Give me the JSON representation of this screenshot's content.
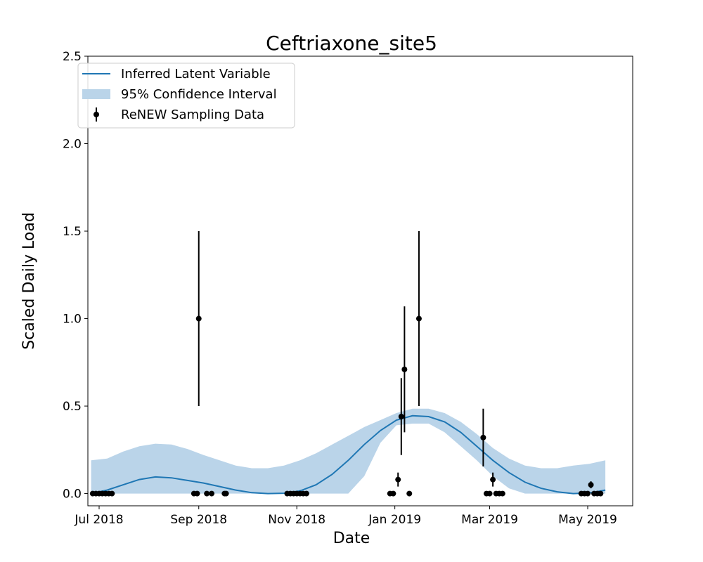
{
  "chart_data": {
    "type": "line",
    "title": "Ceftriaxone_site5",
    "xlabel": "Date",
    "ylabel": "Scaled Daily Load",
    "x_domain": [
      "2018-06-24",
      "2019-05-29"
    ],
    "ylim": [
      -0.07,
      2.5
    ],
    "yticks": [
      0.0,
      0.5,
      1.0,
      1.5,
      2.0,
      2.5
    ],
    "ytick_labels": [
      "0.0",
      "0.5",
      "1.0",
      "1.5",
      "2.0",
      "2.5"
    ],
    "xticks": [
      "2018-07-01",
      "2018-09-01",
      "2018-11-01",
      "2019-01-01",
      "2019-03-01",
      "2019-05-01"
    ],
    "xtick_labels": [
      "Jul 2018",
      "Sep 2018",
      "Nov 2018",
      "Jan 2019",
      "Mar 2019",
      "May 2019"
    ],
    "legend": {
      "position": "top-left",
      "entries": [
        {
          "label": "Inferred Latent Variable",
          "kind": "line",
          "color": "#1f77b4"
        },
        {
          "label": "95% Confidence Interval",
          "kind": "band",
          "color": "#bad4e9"
        },
        {
          "label": "ReNEW Sampling Data",
          "kind": "errorbar",
          "color": "#000000"
        }
      ]
    },
    "colors": {
      "line": "#1f77b4",
      "band": "#bad4e9",
      "points": "#000000"
    },
    "latent": {
      "x": [
        "2018-06-26",
        "2018-07-06",
        "2018-07-16",
        "2018-07-26",
        "2018-08-05",
        "2018-08-15",
        "2018-08-25",
        "2018-09-04",
        "2018-09-14",
        "2018-09-24",
        "2018-10-04",
        "2018-10-14",
        "2018-10-24",
        "2018-11-03",
        "2018-11-13",
        "2018-11-23",
        "2018-12-03",
        "2018-12-13",
        "2018-12-23",
        "2019-01-02",
        "2019-01-12",
        "2019-01-22",
        "2019-02-01",
        "2019-02-11",
        "2019-02-21",
        "2019-03-03",
        "2019-03-13",
        "2019-03-23",
        "2019-04-02",
        "2019-04-12",
        "2019-04-22",
        "2019-05-02",
        "2019-05-12"
      ],
      "mean": [
        0.0,
        0.02,
        0.05,
        0.08,
        0.095,
        0.09,
        0.075,
        0.06,
        0.04,
        0.02,
        0.005,
        0.0,
        0.002,
        0.015,
        0.05,
        0.11,
        0.19,
        0.28,
        0.36,
        0.42,
        0.445,
        0.44,
        0.41,
        0.35,
        0.27,
        0.19,
        0.12,
        0.065,
        0.03,
        0.01,
        0.0,
        0.003,
        0.02
      ],
      "lower": [
        0.0,
        0.0,
        0.0,
        0.0,
        0.0,
        0.0,
        0.0,
        0.0,
        0.0,
        0.0,
        0.0,
        0.0,
        0.0,
        0.0,
        0.0,
        0.0,
        0.0,
        0.1,
        0.29,
        0.39,
        0.4,
        0.4,
        0.35,
        0.27,
        0.19,
        0.1,
        0.03,
        0.0,
        0.0,
        0.0,
        0.0,
        0.0,
        0.0
      ],
      "upper": [
        0.19,
        0.2,
        0.24,
        0.27,
        0.285,
        0.28,
        0.255,
        0.22,
        0.19,
        0.16,
        0.145,
        0.145,
        0.16,
        0.19,
        0.23,
        0.28,
        0.33,
        0.38,
        0.42,
        0.46,
        0.485,
        0.485,
        0.46,
        0.41,
        0.34,
        0.26,
        0.2,
        0.16,
        0.145,
        0.145,
        0.16,
        0.17,
        0.19
      ]
    },
    "samples": [
      {
        "date": "2018-06-27",
        "y": 0.0
      },
      {
        "date": "2018-06-29",
        "y": 0.0
      },
      {
        "date": "2018-07-01",
        "y": 0.0
      },
      {
        "date": "2018-07-03",
        "y": 0.0
      },
      {
        "date": "2018-07-05",
        "y": 0.0
      },
      {
        "date": "2018-07-07",
        "y": 0.0
      },
      {
        "date": "2018-07-09",
        "y": 0.0
      },
      {
        "date": "2018-08-29",
        "y": 0.0
      },
      {
        "date": "2018-08-31",
        "y": 0.0
      },
      {
        "date": "2018-09-01",
        "y": 1.0,
        "err": 0.5
      },
      {
        "date": "2018-09-06",
        "y": 0.0
      },
      {
        "date": "2018-09-09",
        "y": 0.0
      },
      {
        "date": "2018-09-17",
        "y": 0.0
      },
      {
        "date": "2018-09-18",
        "y": 0.0
      },
      {
        "date": "2018-10-26",
        "y": 0.0
      },
      {
        "date": "2018-10-28",
        "y": 0.0
      },
      {
        "date": "2018-10-30",
        "y": 0.0
      },
      {
        "date": "2018-11-01",
        "y": 0.0
      },
      {
        "date": "2018-11-03",
        "y": 0.0
      },
      {
        "date": "2018-11-05",
        "y": 0.0
      },
      {
        "date": "2018-11-07",
        "y": 0.0
      },
      {
        "date": "2018-12-29",
        "y": 0.0
      },
      {
        "date": "2018-12-31",
        "y": 0.0
      },
      {
        "date": "2019-01-03",
        "y": 0.08,
        "err": 0.04
      },
      {
        "date": "2019-01-05",
        "y": 0.44,
        "err": 0.22
      },
      {
        "date": "2019-01-07",
        "y": 0.71,
        "err": 0.36
      },
      {
        "date": "2019-01-10",
        "y": 0.0
      },
      {
        "date": "2019-01-16",
        "y": 1.0,
        "err": 0.5
      },
      {
        "date": "2019-02-25",
        "y": 0.32,
        "err": 0.165
      },
      {
        "date": "2019-02-27",
        "y": 0.0
      },
      {
        "date": "2019-03-01",
        "y": 0.0
      },
      {
        "date": "2019-03-03",
        "y": 0.08,
        "err": 0.04
      },
      {
        "date": "2019-03-05",
        "y": 0.0
      },
      {
        "date": "2019-03-07",
        "y": 0.0
      },
      {
        "date": "2019-03-09",
        "y": 0.0
      },
      {
        "date": "2019-04-27",
        "y": 0.0
      },
      {
        "date": "2019-04-29",
        "y": 0.0
      },
      {
        "date": "2019-05-01",
        "y": 0.0
      },
      {
        "date": "2019-05-03",
        "y": 0.05,
        "err": 0.02
      },
      {
        "date": "2019-05-05",
        "y": 0.0
      },
      {
        "date": "2019-05-07",
        "y": 0.0
      },
      {
        "date": "2019-05-09",
        "y": 0.0
      }
    ]
  }
}
